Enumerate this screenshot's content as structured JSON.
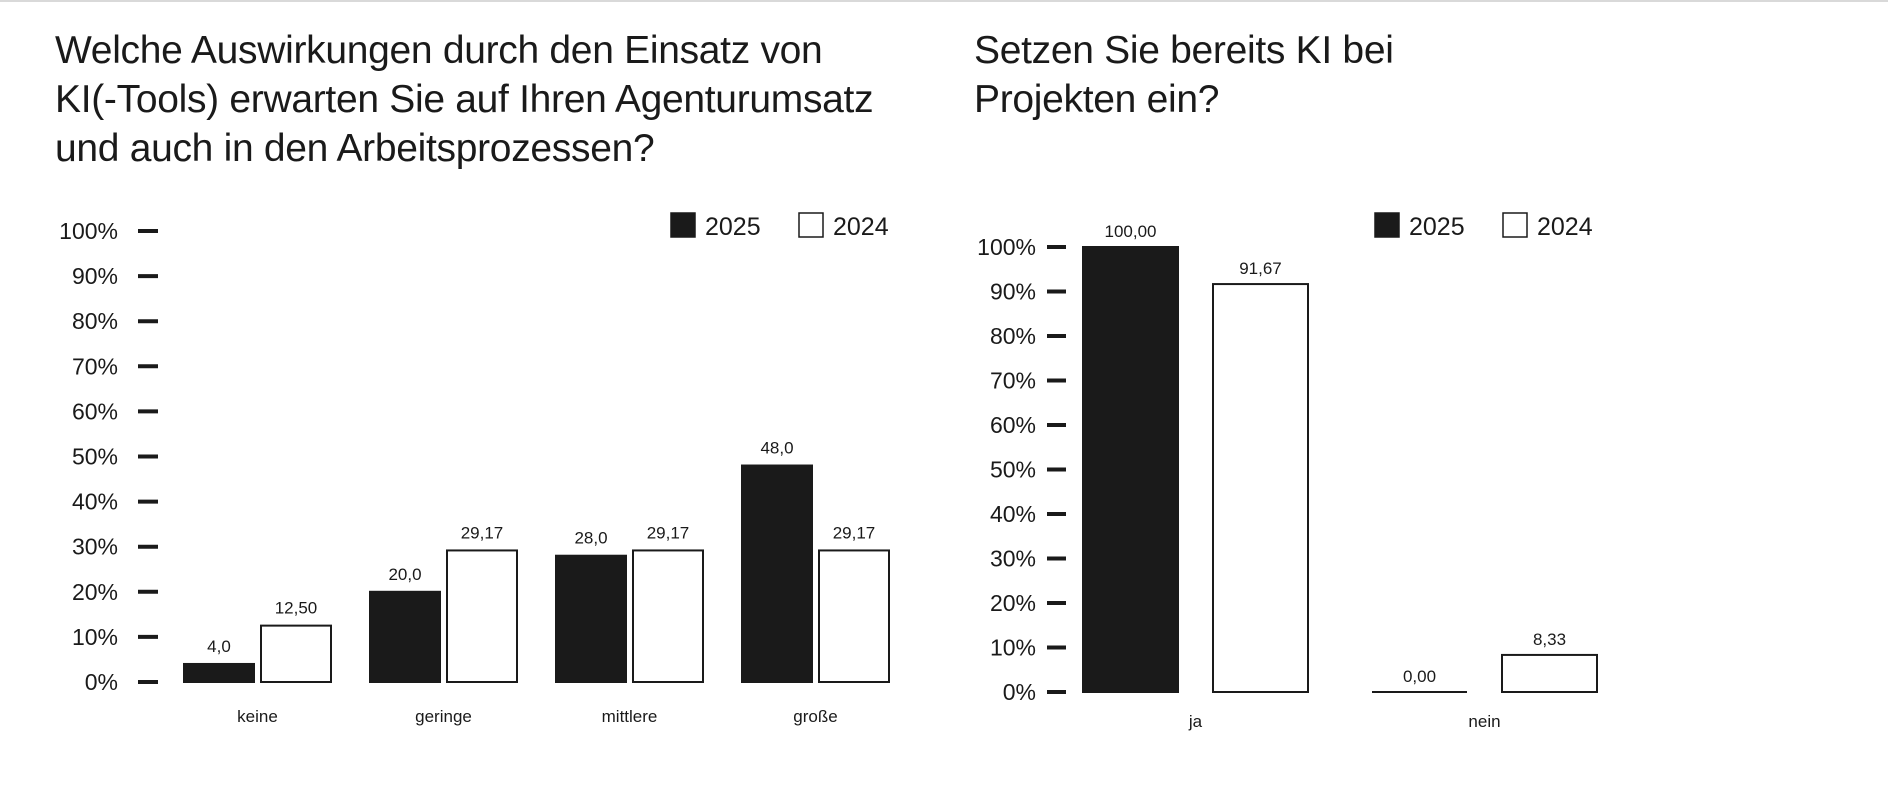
{
  "colors": {
    "series_2025": "#1a1a1a",
    "series_2024": "#ffffff",
    "stroke": "#1a1a1a"
  },
  "chart_data": [
    {
      "type": "bar",
      "title": "Welche Auswirkungen durch den Einsatz von\nKI(-Tools) erwarten Sie auf Ihren Agenturumsatz\nund auch in den Arbeitsprozessen?",
      "categories": [
        "keine",
        "geringe",
        "mittlere",
        "große"
      ],
      "series": [
        {
          "name": "2025",
          "values": [
            4.0,
            20.0,
            28.0,
            48.0
          ],
          "value_labels": [
            "4,0",
            "20,0",
            "28,0",
            "48,0"
          ]
        },
        {
          "name": "2024",
          "values": [
            12.5,
            29.17,
            29.17,
            29.17
          ],
          "value_labels": [
            "12,50",
            "29,17",
            "29,17",
            "29,17"
          ]
        }
      ],
      "yticks": [
        "0%",
        "10%",
        "20%",
        "30%",
        "40%",
        "50%",
        "60%",
        "70%",
        "80%",
        "90%",
        "100%"
      ],
      "ylim": [
        0,
        100
      ],
      "legend": "top-right",
      "grid": false
    },
    {
      "type": "bar",
      "title": "Setzen Sie bereits KI bei\nProjekten ein?",
      "categories": [
        "ja",
        "nein"
      ],
      "series": [
        {
          "name": "2025",
          "values": [
            100.0,
            0.0
          ],
          "value_labels": [
            "100,00",
            "0,00"
          ]
        },
        {
          "name": "2024",
          "values": [
            91.67,
            8.33
          ],
          "value_labels": [
            "91,67",
            "8,33"
          ]
        }
      ],
      "yticks": [
        "0%",
        "10%",
        "20%",
        "30%",
        "40%",
        "50%",
        "60%",
        "70%",
        "80%",
        "90%",
        "100%"
      ],
      "ylim": [
        0,
        100
      ],
      "legend": "top-right",
      "grid": false
    }
  ]
}
